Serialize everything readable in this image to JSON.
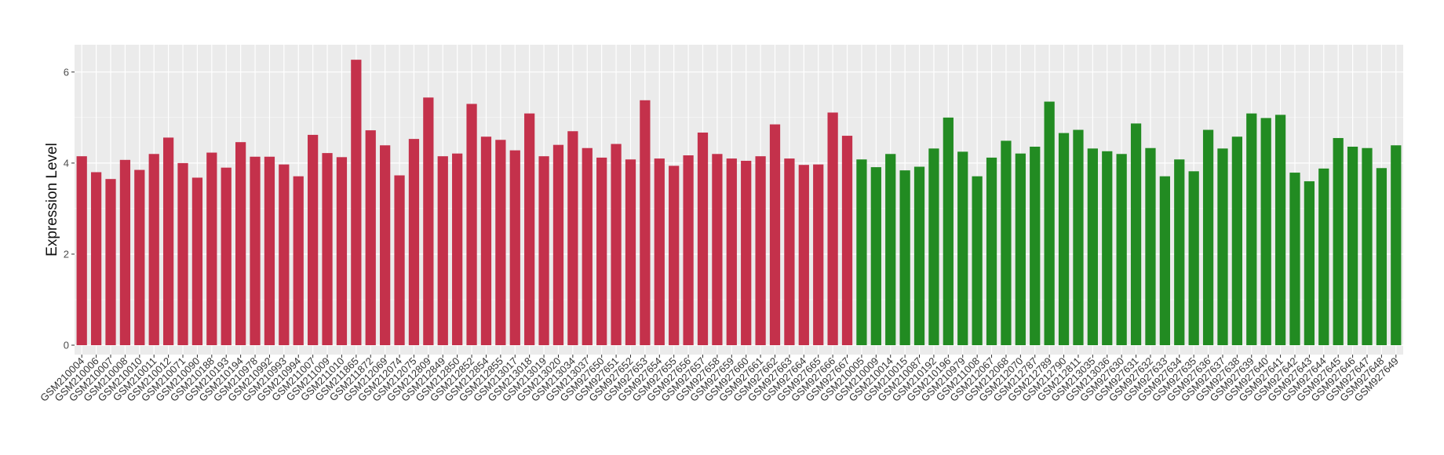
{
  "chart_data": {
    "type": "bar",
    "title": "",
    "xlabel": "",
    "ylabel": "Expression Level",
    "ylim": [
      0,
      6.6
    ],
    "yticks": [
      0,
      2,
      4,
      6
    ],
    "grid": true,
    "legend": "none",
    "colors": {
      "group_1": "#c4314b",
      "group_2": "#228b22",
      "panel_background": "#ebebeb",
      "grid_major": "#ffffff"
    },
    "categories": [
      "GSM210004",
      "GSM210006",
      "GSM210007",
      "GSM210008",
      "GSM210010",
      "GSM210011",
      "GSM210012",
      "GSM210071",
      "GSM210090",
      "GSM210188",
      "GSM210193",
      "GSM210194",
      "GSM210978",
      "GSM210992",
      "GSM210993",
      "GSM210994",
      "GSM211007",
      "GSM211009",
      "GSM211010",
      "GSM211865",
      "GSM211872",
      "GSM212069",
      "GSM212074",
      "GSM212075",
      "GSM212809",
      "GSM212849",
      "GSM212850",
      "GSM212852",
      "GSM212854",
      "GSM212855",
      "GSM213017",
      "GSM213018",
      "GSM213019",
      "GSM213020",
      "GSM213034",
      "GSM213037",
      "GSM927650",
      "GSM927651",
      "GSM927652",
      "GSM927653",
      "GSM927654",
      "GSM927655",
      "GSM927656",
      "GSM927657",
      "GSM927658",
      "GSM927659",
      "GSM927660",
      "GSM927661",
      "GSM927662",
      "GSM927663",
      "GSM927664",
      "GSM927665",
      "GSM927666",
      "GSM927667",
      "GSM210005",
      "GSM210009",
      "GSM210014",
      "GSM210015",
      "GSM210087",
      "GSM210192",
      "GSM210196",
      "GSM210979",
      "GSM211008",
      "GSM212067",
      "GSM212068",
      "GSM212070",
      "GSM212787",
      "GSM212789",
      "GSM212790",
      "GSM212811",
      "GSM213035",
      "GSM213036",
      "GSM927630",
      "GSM927631",
      "GSM927632",
      "GSM927633",
      "GSM927634",
      "GSM927635",
      "GSM927636",
      "GSM927637",
      "GSM927638",
      "GSM927639",
      "GSM927640",
      "GSM927641",
      "GSM927642",
      "GSM927643",
      "GSM927644",
      "GSM927645",
      "GSM927646",
      "GSM927647",
      "GSM927648",
      "GSM927649"
    ],
    "values": [
      4.15,
      3.8,
      3.65,
      4.07,
      3.85,
      4.2,
      4.56,
      4.0,
      3.68,
      4.23,
      3.9,
      4.46,
      4.14,
      4.14,
      3.97,
      3.71,
      4.62,
      4.22,
      4.13,
      6.27,
      4.72,
      4.39,
      3.73,
      4.53,
      5.44,
      4.15,
      4.21,
      5.3,
      4.58,
      4.51,
      4.28,
      5.09,
      4.15,
      4.4,
      4.7,
      4.33,
      4.12,
      4.42,
      4.08,
      5.38,
      4.1,
      3.94,
      4.17,
      4.67,
      4.2,
      4.1,
      4.05,
      4.15,
      4.85,
      4.1,
      3.96,
      3.97,
      5.11,
      4.6,
      4.08,
      3.91,
      4.2,
      3.84,
      3.92,
      4.32,
      5.0,
      4.25,
      3.71,
      4.12,
      4.49,
      4.21,
      4.36,
      5.35,
      4.66,
      4.73,
      4.32,
      4.26,
      4.2,
      4.87,
      4.33,
      3.71,
      4.08,
      3.82,
      4.73,
      4.32,
      4.58,
      5.09,
      4.99,
      5.06,
      3.79,
      3.6,
      3.88,
      4.55,
      4.36,
      4.33,
      3.89,
      4.39
    ],
    "group_sizes": [
      54,
      38
    ]
  }
}
